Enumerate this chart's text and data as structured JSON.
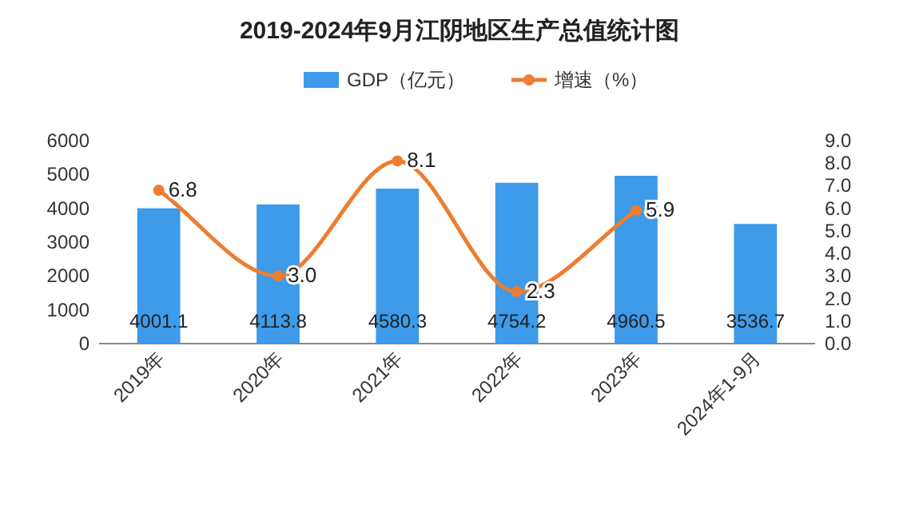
{
  "chart_data": {
    "type": "bar",
    "title": "2019-2024年9月江阴地区生产总值统计图",
    "categories": [
      "2019年",
      "2020年",
      "2021年",
      "2022年",
      "2023年",
      "2024年1-9月"
    ],
    "series": [
      {
        "name": "GDP（亿元）",
        "color": "#3d9be9",
        "values": [
          4001.1,
          4113.8,
          4580.3,
          4754.2,
          4960.5,
          3536.7
        ]
      },
      {
        "name": "增速（%）",
        "type": "line",
        "axis": "y2",
        "color": "#ed7d31",
        "values": [
          6.8,
          3.0,
          8.1,
          2.3,
          5.9,
          null
        ],
        "value_labels": [
          "6.8",
          "3.0",
          "8.1",
          "2.3",
          "5.9",
          null
        ]
      }
    ],
    "ylim": [
      0,
      6000
    ],
    "yticks": [
      0,
      1000,
      2000,
      3000,
      4000,
      5000,
      6000
    ],
    "y2lim": [
      0,
      9
    ],
    "y2ticks": [
      {
        "value": 0,
        "label": "0.0"
      },
      {
        "value": 1,
        "label": "1.0"
      },
      {
        "value": 2,
        "label": "2.0"
      },
      {
        "value": 3,
        "label": "3.0"
      },
      {
        "value": 4,
        "label": "4.0"
      },
      {
        "value": 5,
        "label": "5.0"
      },
      {
        "value": 6,
        "label": "6.0"
      },
      {
        "value": 7,
        "label": "7.0"
      },
      {
        "value": 8,
        "label": "8.0"
      },
      {
        "value": 9,
        "label": "9.0"
      }
    ],
    "data_labels": true,
    "legend": "top",
    "grid": false,
    "marker": "circle",
    "line_style": "solid"
  }
}
